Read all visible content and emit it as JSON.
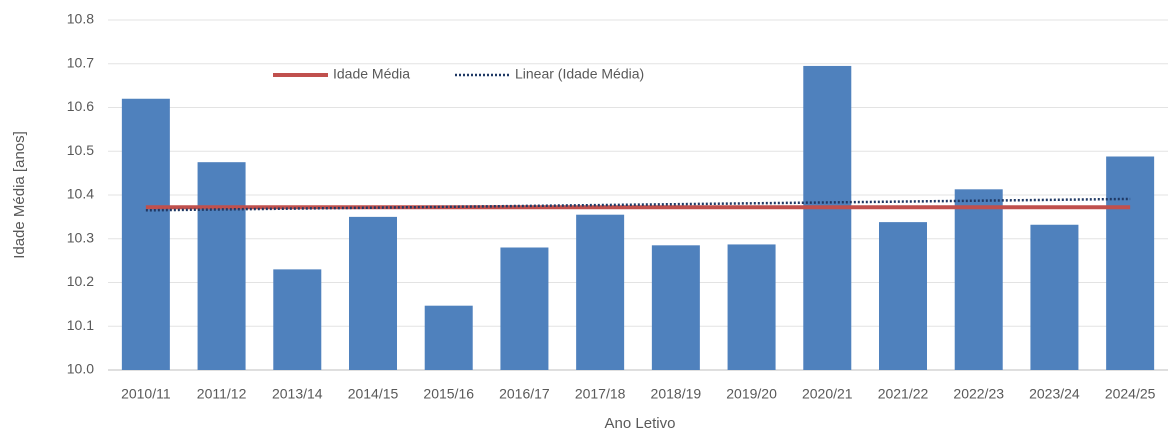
{
  "chart_data": {
    "type": "bar",
    "x_label": "Ano Letivo",
    "y_label": "Idade Média [anos]",
    "categories": [
      "2010/11",
      "2011/12",
      "2013/14",
      "2014/15",
      "2015/16",
      "2016/17",
      "2017/18",
      "2018/19",
      "2019/20",
      "2020/21",
      "2021/22",
      "2022/23",
      "2023/24",
      "2024/25"
    ],
    "values": [
      10.62,
      10.475,
      10.23,
      10.35,
      10.147,
      10.28,
      10.355,
      10.285,
      10.287,
      10.695,
      10.338,
      10.413,
      10.332,
      10.488
    ],
    "color": "#4f81bd",
    "series": [
      {
        "name": "Idade Média",
        "color": "#c0504d",
        "style": "solid",
        "values": [
          10.372,
          10.372,
          10.372,
          10.372,
          10.372,
          10.372,
          10.372,
          10.372,
          10.372,
          10.372,
          10.372,
          10.372,
          10.372,
          10.372
        ]
      },
      {
        "name": "Linear (Idade Média)",
        "color": "#1f3864",
        "style": "dotted",
        "values": [
          10.365,
          10.367,
          10.369,
          10.371,
          10.373,
          10.375,
          10.377,
          10.379,
          10.381,
          10.383,
          10.385,
          10.387,
          10.389,
          10.391
        ]
      }
    ],
    "ylim": [
      10,
      10.8
    ],
    "yticks": [
      {
        "value": 10,
        "label": "10.0"
      },
      10.1,
      10.2,
      10.3,
      10.4,
      10.5,
      10.6,
      10.7,
      10.8
    ],
    "grid": true
  }
}
